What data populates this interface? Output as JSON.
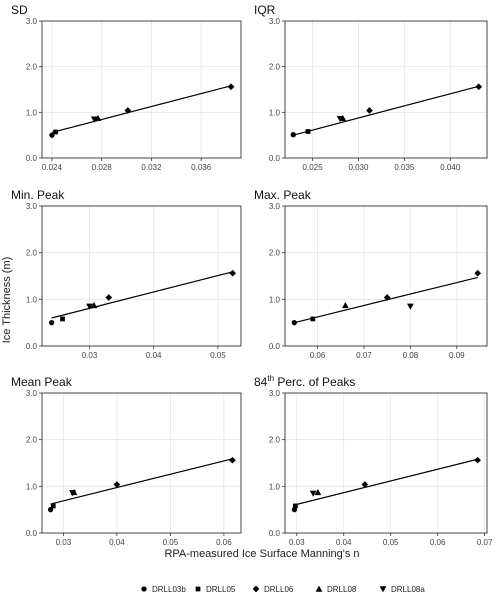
{
  "figure": {
    "ylabel": "Ice Thickness (m)",
    "xlabel": "RPA-measured Ice Surface Manning's n"
  },
  "legend": {
    "placement": "bottom",
    "items": [
      {
        "label": "DRLL03b",
        "marker": "circle"
      },
      {
        "label": "DRLL05",
        "marker": "square"
      },
      {
        "label": "DRLL06",
        "marker": "diamond"
      },
      {
        "label": "DRLL08",
        "marker": "triangle-up"
      },
      {
        "label": "DRLL08a",
        "marker": "triangle-down"
      }
    ]
  },
  "chart_data": [
    {
      "type": "scatter",
      "title": "SD",
      "ylim": [
        0,
        3
      ],
      "yticks": [
        "0.0",
        "1.0",
        "2.0",
        "3.0"
      ],
      "yticks_values": [
        0,
        1,
        2,
        3
      ],
      "xlim": [
        0.0232,
        0.0392
      ],
      "xticks": [
        "0.024",
        "0.028",
        "0.032",
        "0.036"
      ],
      "xticks_values": [
        0.024,
        0.028,
        0.032,
        0.036
      ],
      "points": [
        {
          "series": "DRLL03b",
          "x": 0.024,
          "y": 0.5
        },
        {
          "series": "DRLL05",
          "x": 0.0243,
          "y": 0.57
        },
        {
          "series": "DRLL08a",
          "x": 0.0274,
          "y": 0.85
        },
        {
          "series": "DRLL08",
          "x": 0.0277,
          "y": 0.87
        },
        {
          "series": "DRLL06",
          "x": 0.0301,
          "y": 1.04
        },
        {
          "series": "DRLL06",
          "x": 0.0384,
          "y": 1.56
        }
      ],
      "fit": [
        [
          0.024,
          0.56
        ],
        [
          0.0384,
          1.58
        ]
      ]
    },
    {
      "type": "scatter",
      "title": "IQR",
      "ylim": [
        0,
        3
      ],
      "yticks": [
        "0.0",
        "1.0",
        "2.0",
        "3.0"
      ],
      "yticks_values": [
        0,
        1,
        2,
        3
      ],
      "xlim": [
        0.022,
        0.044
      ],
      "xticks": [
        "0.025",
        "0.030",
        "0.035",
        "0.040"
      ],
      "xticks_values": [
        0.025,
        0.03,
        0.035,
        0.04
      ],
      "points": [
        {
          "series": "DRLL03b",
          "x": 0.0229,
          "y": 0.51
        },
        {
          "series": "DRLL05",
          "x": 0.0245,
          "y": 0.58
        },
        {
          "series": "DRLL08a",
          "x": 0.028,
          "y": 0.86
        },
        {
          "series": "DRLL08",
          "x": 0.0283,
          "y": 0.87
        },
        {
          "series": "DRLL06",
          "x": 0.0312,
          "y": 1.04
        },
        {
          "series": "DRLL06",
          "x": 0.0431,
          "y": 1.56
        }
      ],
      "fit": [
        [
          0.0229,
          0.5
        ],
        [
          0.0431,
          1.57
        ]
      ]
    },
    {
      "type": "scatter",
      "title": "Min. Peak",
      "ylim": [
        0,
        3
      ],
      "yticks": [
        "0.0",
        "1.0",
        "2.0",
        "3.0"
      ],
      "yticks_values": [
        0,
        1,
        2,
        3
      ],
      "xlim": [
        0.0226,
        0.0536
      ],
      "xticks": [
        "0.03",
        "0.04",
        "0.05"
      ],
      "xticks_values": [
        0.03,
        0.04,
        0.05
      ],
      "points": [
        {
          "series": "DRLL03b",
          "x": 0.0241,
          "y": 0.5
        },
        {
          "series": "DRLL05",
          "x": 0.0258,
          "y": 0.58
        },
        {
          "series": "DRLL08a",
          "x": 0.03,
          "y": 0.85
        },
        {
          "series": "DRLL08",
          "x": 0.0307,
          "y": 0.87
        },
        {
          "series": "DRLL06",
          "x": 0.033,
          "y": 1.04
        },
        {
          "series": "DRLL06",
          "x": 0.0523,
          "y": 1.56
        }
      ],
      "fit": [
        [
          0.0241,
          0.6
        ],
        [
          0.0523,
          1.59
        ]
      ]
    },
    {
      "type": "scatter",
      "title": "Max. Peak",
      "ylim": [
        0,
        3
      ],
      "yticks": [
        "0.0",
        "1.0",
        "2.0",
        "3.0"
      ],
      "yticks_values": [
        0,
        1,
        2,
        3
      ],
      "xlim": [
        0.053,
        0.0965
      ],
      "xticks": [
        "0.06",
        "0.07",
        "0.08",
        "0.09"
      ],
      "xticks_values": [
        0.06,
        0.07,
        0.08,
        0.09
      ],
      "points": [
        {
          "series": "DRLL03b",
          "x": 0.055,
          "y": 0.5
        },
        {
          "series": "DRLL05",
          "x": 0.059,
          "y": 0.58
        },
        {
          "series": "DRLL08",
          "x": 0.066,
          "y": 0.87
        },
        {
          "series": "DRLL06",
          "x": 0.075,
          "y": 1.04
        },
        {
          "series": "DRLL08a",
          "x": 0.08,
          "y": 0.85
        },
        {
          "series": "DRLL06",
          "x": 0.0945,
          "y": 1.56
        }
      ],
      "fit": [
        [
          0.055,
          0.5
        ],
        [
          0.0945,
          1.47
        ]
      ]
    },
    {
      "type": "scatter",
      "title": "Mean Peak",
      "ylim": [
        0,
        3
      ],
      "yticks": [
        "0.0",
        "1.0",
        "2.0",
        "3.0"
      ],
      "yticks_values": [
        0,
        1,
        2,
        3
      ],
      "xlim": [
        0.026,
        0.0632
      ],
      "xticks": [
        "0.03",
        "0.04",
        "0.05",
        "0.06"
      ],
      "xticks_values": [
        0.03,
        0.04,
        0.05,
        0.06
      ],
      "points": [
        {
          "series": "DRLL03b",
          "x": 0.0276,
          "y": 0.5
        },
        {
          "series": "DRLL05",
          "x": 0.0281,
          "y": 0.58
        },
        {
          "series": "DRLL08a",
          "x": 0.0317,
          "y": 0.86
        },
        {
          "series": "DRLL08",
          "x": 0.032,
          "y": 0.87
        },
        {
          "series": "DRLL06",
          "x": 0.04,
          "y": 1.04
        },
        {
          "series": "DRLL06",
          "x": 0.0616,
          "y": 1.56
        }
      ],
      "fit": [
        [
          0.0276,
          0.62
        ],
        [
          0.0616,
          1.59
        ]
      ]
    },
    {
      "type": "scatter",
      "title": "84th Perc. of Peaks",
      "title_parts": {
        "base": "84",
        "sup": "th",
        "rest": " Perc. of Peaks"
      },
      "ylim": [
        0,
        3
      ],
      "yticks": [
        "0.0",
        "1.0",
        "2.0",
        "3.0"
      ],
      "yticks_values": [
        0,
        1,
        2,
        3
      ],
      "xlim": [
        0.0275,
        0.0705
      ],
      "xticks": [
        "0.03",
        "0.04",
        "0.05",
        "0.06",
        "0.07"
      ],
      "xticks_values": [
        0.03,
        0.04,
        0.05,
        0.06,
        0.07
      ],
      "points": [
        {
          "series": "DRLL03b",
          "x": 0.0295,
          "y": 0.5
        },
        {
          "series": "DRLL05",
          "x": 0.0297,
          "y": 0.58
        },
        {
          "series": "DRLL08a",
          "x": 0.0335,
          "y": 0.85
        },
        {
          "series": "DRLL08",
          "x": 0.0345,
          "y": 0.87
        },
        {
          "series": "DRLL06",
          "x": 0.0445,
          "y": 1.04
        },
        {
          "series": "DRLL06",
          "x": 0.0685,
          "y": 1.56
        }
      ],
      "fit": [
        [
          0.0295,
          0.6
        ],
        [
          0.0685,
          1.58
        ]
      ]
    }
  ]
}
